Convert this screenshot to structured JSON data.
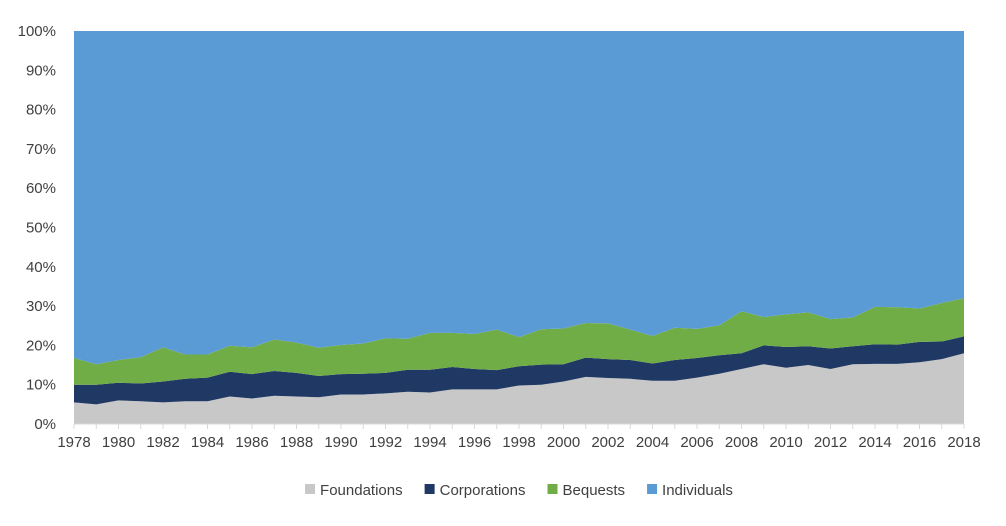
{
  "chart_data": {
    "type": "area",
    "stacked": true,
    "normalized": true,
    "title": "",
    "xlabel": "",
    "ylabel": "",
    "ylim": [
      0,
      100
    ],
    "y_tick_labels": [
      "0%",
      "10%",
      "20%",
      "30%",
      "40%",
      "50%",
      "60%",
      "70%",
      "80%",
      "90%",
      "100%"
    ],
    "x_tick_labels": [
      "1978",
      "1980",
      "1982",
      "1984",
      "1986",
      "1988",
      "1990",
      "1992",
      "1994",
      "1996",
      "1998",
      "2000",
      "2002",
      "2004",
      "2006",
      "2008",
      "2010",
      "2012",
      "2014",
      "2016",
      "2018"
    ],
    "grid": false,
    "legend": "bottom",
    "x": [
      1978,
      1979,
      1980,
      1981,
      1982,
      1983,
      1984,
      1985,
      1986,
      1987,
      1988,
      1989,
      1990,
      1991,
      1992,
      1993,
      1994,
      1995,
      1996,
      1997,
      1998,
      1999,
      2000,
      2001,
      2002,
      2003,
      2004,
      2005,
      2006,
      2007,
      2008,
      2009,
      2010,
      2011,
      2012,
      2013,
      2014,
      2015,
      2016,
      2017,
      2018
    ],
    "series": [
      {
        "name": "Foundations",
        "color": "#c8c8c8",
        "values": [
          5.5,
          5.0,
          6.0,
          5.8,
          5.5,
          5.8,
          5.8,
          7.0,
          6.5,
          7.2,
          7.0,
          6.8,
          7.5,
          7.5,
          7.8,
          8.2,
          8.0,
          8.8,
          8.8,
          8.8,
          9.8,
          10.0,
          10.8,
          12.0,
          11.7,
          11.5,
          11.0,
          11.0,
          11.8,
          12.8,
          14.0,
          15.2,
          14.3,
          15.0,
          14.0,
          15.2,
          15.3,
          15.3,
          15.7,
          16.5,
          18.0
        ]
      },
      {
        "name": "Corporations",
        "color": "#1f3864",
        "values": [
          4.5,
          5.0,
          4.5,
          4.5,
          5.3,
          5.7,
          6.0,
          6.3,
          6.2,
          6.3,
          6.0,
          5.4,
          5.2,
          5.3,
          5.2,
          5.6,
          5.8,
          5.7,
          5.2,
          4.9,
          4.9,
          5.1,
          4.4,
          4.9,
          4.8,
          4.8,
          4.4,
          5.3,
          5.0,
          4.7,
          4.0,
          4.8,
          5.3,
          4.8,
          5.2,
          4.6,
          5.0,
          4.9,
          5.2,
          4.5,
          4.3
        ]
      },
      {
        "name": "Bequests",
        "color": "#70ad47",
        "values": [
          6.8,
          5.2,
          5.8,
          6.7,
          8.7,
          6.2,
          5.9,
          6.6,
          6.8,
          8.0,
          7.7,
          7.2,
          7.4,
          7.7,
          8.8,
          7.9,
          9.4,
          8.7,
          8.9,
          10.3,
          7.4,
          9.0,
          9.1,
          8.8,
          9.1,
          7.7,
          7.0,
          8.2,
          7.4,
          7.6,
          10.7,
          7.2,
          8.3,
          8.6,
          7.5,
          7.3,
          9.5,
          9.5,
          8.5,
          9.8,
          9.7
        ]
      },
      {
        "name": "Individuals",
        "color": "#5b9bd5",
        "values": [
          83.2,
          84.8,
          83.7,
          83.0,
          80.5,
          82.3,
          82.3,
          80.1,
          80.5,
          78.5,
          79.3,
          80.6,
          79.9,
          79.5,
          78.2,
          78.3,
          76.8,
          76.8,
          77.1,
          76.0,
          77.9,
          75.9,
          75.7,
          74.3,
          74.4,
          76.0,
          77.6,
          75.5,
          75.8,
          74.9,
          71.3,
          72.8,
          72.1,
          71.6,
          73.3,
          72.9,
          70.2,
          70.3,
          70.6,
          69.2,
          68.0
        ]
      }
    ]
  }
}
